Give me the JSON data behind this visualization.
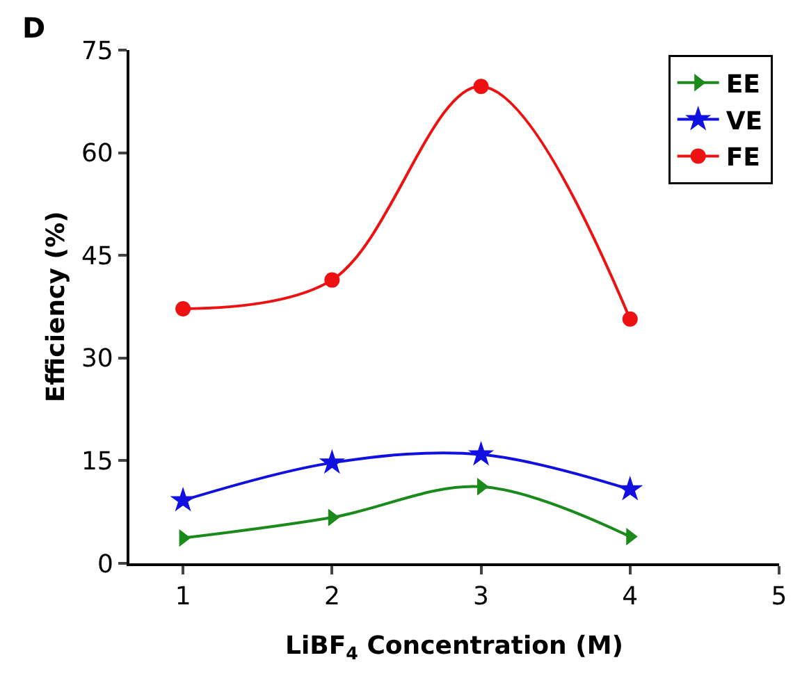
{
  "chart_data": {
    "type": "line",
    "xlabel": "LiBF$_{4}$ Concentration (M)",
    "ylabel": "Efficiency (%)",
    "annotations": [
      "D"
    ],
    "x": [
      1,
      2,
      3,
      4
    ],
    "xlim": [
      0.64,
      5
    ],
    "xticks": [
      1,
      2,
      3,
      4,
      5
    ],
    "ylim": [
      0,
      75
    ],
    "yticks": [
      0,
      15,
      30,
      45,
      60,
      75
    ],
    "grid": false,
    "legend": "top right",
    "series": [
      {
        "name": "EE",
        "color": "#1a8a1a",
        "marker": "triangle",
        "values": [
          3.7,
          6.7,
          11.2,
          3.9
        ]
      },
      {
        "name": "VE",
        "color": "#1010e0",
        "marker": "star",
        "values": [
          9.2,
          14.7,
          15.9,
          10.8
        ]
      },
      {
        "name": "FE",
        "color": "#ee1111",
        "marker": "circle",
        "values": [
          37.2,
          41.4,
          69.7,
          35.7
        ]
      }
    ]
  }
}
